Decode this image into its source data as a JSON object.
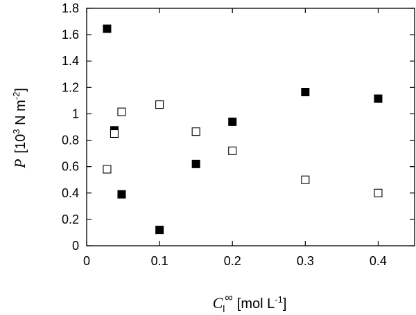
{
  "chart_data": {
    "type": "scatter",
    "xlabel": {
      "symbol": "C",
      "subscript": "l",
      "superscript": "∞",
      "units": "[mol L",
      "units_exp": "-1",
      "units_close": "]"
    },
    "ylabel": {
      "symbol": "P",
      "units_open": "[10",
      "units_exp": "3",
      "units_mid": " N m",
      "units_exp2": "-2",
      "units_close": "]"
    },
    "xlim": [
      0,
      0.45
    ],
    "ylim": [
      0,
      1.8
    ],
    "xticks": [
      "0",
      "0.1",
      "0.2",
      "0.3",
      "0.4"
    ],
    "xtick_values": [
      0,
      0.1,
      0.2,
      0.3,
      0.4
    ],
    "yticks": [
      "0",
      "0.2",
      "0.4",
      "0.6",
      "0.8",
      "1",
      "1.2",
      "1.4",
      "1.6",
      "1.8"
    ],
    "ytick_values": [
      0,
      0.2,
      0.4,
      0.6,
      0.8,
      1.0,
      1.2,
      1.4,
      1.6,
      1.8
    ],
    "grid": false,
    "series": [
      {
        "marker": "filled-square",
        "color": "#000000",
        "points": [
          {
            "x": 0.028,
            "y": 1.645
          },
          {
            "x": 0.038,
            "y": 0.875
          },
          {
            "x": 0.048,
            "y": 0.39
          },
          {
            "x": 0.1,
            "y": 0.12
          },
          {
            "x": 0.15,
            "y": 0.62
          },
          {
            "x": 0.2,
            "y": 0.94
          },
          {
            "x": 0.3,
            "y": 1.165
          },
          {
            "x": 0.4,
            "y": 1.115
          }
        ]
      },
      {
        "marker": "open-square",
        "color": "#000000",
        "points": [
          {
            "x": 0.028,
            "y": 0.58
          },
          {
            "x": 0.038,
            "y": 0.85
          },
          {
            "x": 0.048,
            "y": 1.015
          },
          {
            "x": 0.1,
            "y": 1.07
          },
          {
            "x": 0.15,
            "y": 0.865
          },
          {
            "x": 0.2,
            "y": 0.72
          },
          {
            "x": 0.3,
            "y": 0.5
          },
          {
            "x": 0.4,
            "y": 0.4
          }
        ]
      }
    ]
  }
}
